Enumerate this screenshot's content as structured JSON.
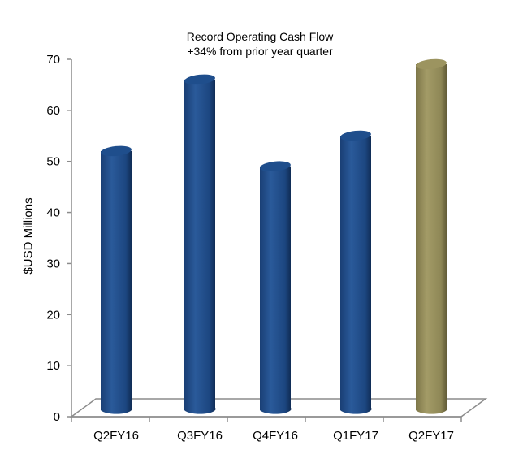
{
  "chart_data": {
    "type": "bar",
    "title": "Record Operating Cash Flow",
    "subtitle": "+34% from prior year quarter",
    "xlabel": "",
    "ylabel": "$USD Millions",
    "ylim": [
      0,
      70
    ],
    "yticks": [
      0,
      10,
      20,
      30,
      40,
      50,
      60,
      70
    ],
    "categories": [
      "Q2FY16",
      "Q3FY16",
      "Q4FY16",
      "Q1FY17",
      "Q2FY17"
    ],
    "values": [
      53,
      67,
      50,
      56,
      70
    ],
    "colors": [
      "#1f4e8c",
      "#1f4e8c",
      "#1f4e8c",
      "#1f4e8c",
      "#9c9460"
    ],
    "grid": false,
    "legend": null,
    "style": "3d-cylinder"
  }
}
